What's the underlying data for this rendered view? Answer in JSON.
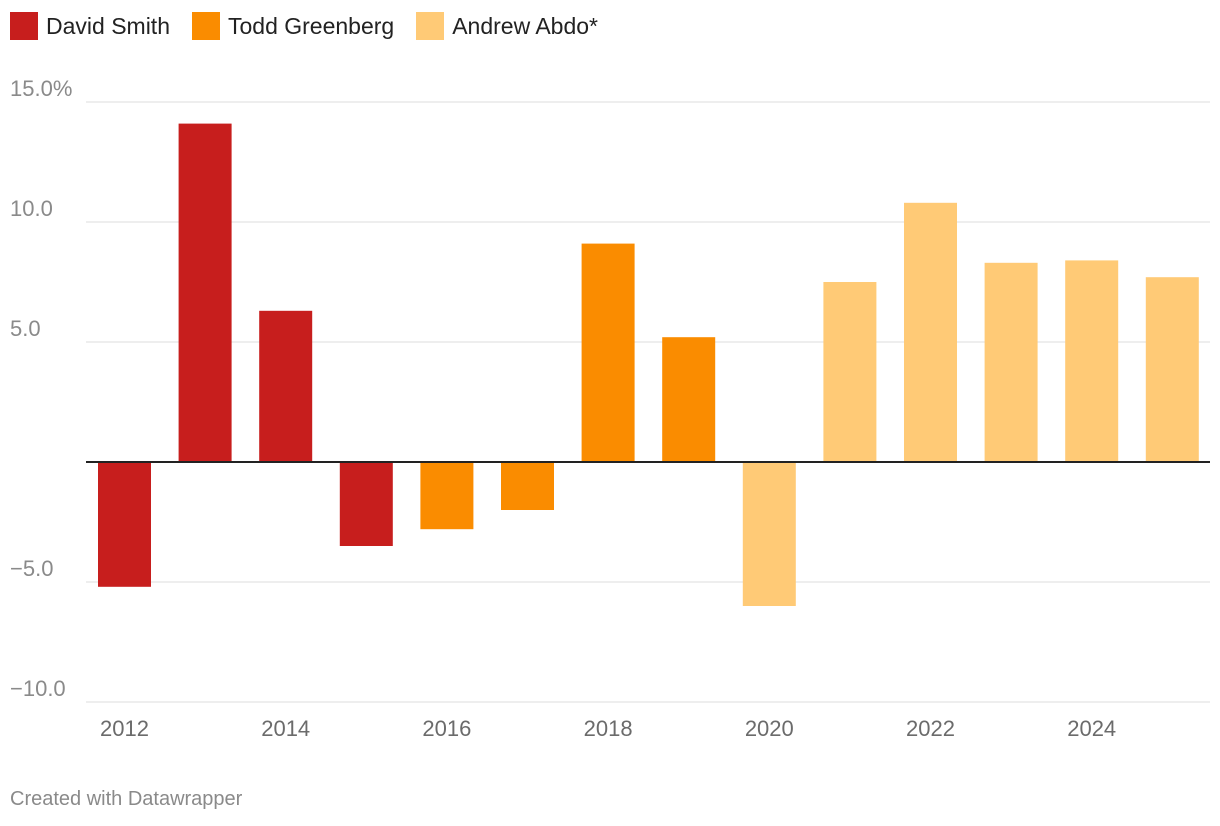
{
  "chart_data": {
    "type": "bar",
    "title": "",
    "xlabel": "",
    "ylabel": "",
    "ylim": [
      -10,
      15
    ],
    "yticks": [
      15,
      10,
      5,
      -5,
      -10
    ],
    "ytick_labels": [
      "15.0%",
      "10.0",
      "5.0",
      "−5.0",
      "−10.0"
    ],
    "x_tick_labels": [
      "2012",
      "2014",
      "2016",
      "2018",
      "2020",
      "2022",
      "2024"
    ],
    "categories": [
      "2012",
      "2013",
      "2014",
      "2015",
      "2016",
      "2017",
      "2018",
      "2019",
      "2020",
      "2021",
      "2022",
      "2023",
      "2024",
      "2025"
    ],
    "values": [
      -5.2,
      14.1,
      6.3,
      -3.5,
      -2.8,
      -2.0,
      9.1,
      5.2,
      -6.0,
      7.5,
      10.8,
      8.3,
      8.4,
      7.7
    ],
    "groups": [
      "David Smith",
      "David Smith",
      "David Smith",
      "David Smith",
      "Todd Greenberg",
      "Todd Greenberg",
      "Todd Greenberg",
      "Todd Greenberg",
      "Andrew Abdo*",
      "Andrew Abdo*",
      "Andrew Abdo*",
      "Andrew Abdo*",
      "Andrew Abdo*",
      "Andrew Abdo*"
    ],
    "legend": [
      {
        "name": "David Smith",
        "color": "#c71e1d"
      },
      {
        "name": "Todd Greenberg",
        "color": "#fa8c00"
      },
      {
        "name": "Andrew Abdo*",
        "color": "#ffca76"
      }
    ]
  },
  "footer": "Created with Datawrapper"
}
